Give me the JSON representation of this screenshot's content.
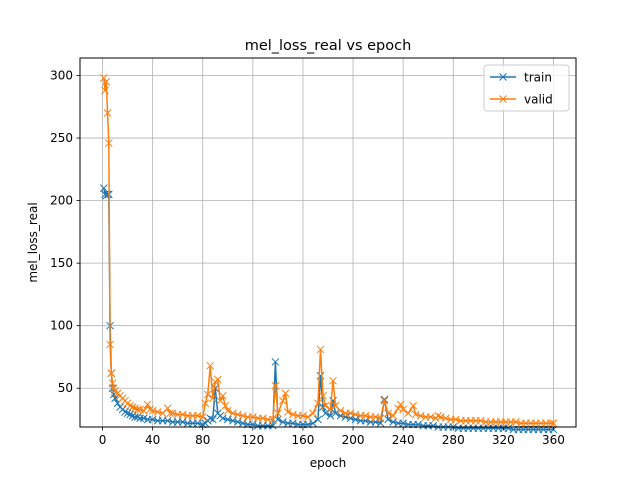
{
  "chart_data": {
    "type": "line",
    "title": "mel_loss_real vs epoch",
    "xlabel": "epoch",
    "ylabel": "mel_loss_real",
    "xlim": [
      -18,
      378
    ],
    "ylim": [
      19,
      314
    ],
    "xticks": [
      0,
      40,
      80,
      120,
      160,
      200,
      240,
      280,
      320,
      360
    ],
    "yticks": [
      50,
      100,
      150,
      200,
      250,
      300
    ],
    "grid": true,
    "legend": "top-right",
    "marker": "x",
    "series": [
      {
        "name": "train",
        "color": "#1f77b4",
        "points": [
          [
            1,
            210
          ],
          [
            2,
            205
          ],
          [
            3,
            204
          ],
          [
            4,
            205
          ],
          [
            5,
            205
          ],
          [
            6,
            100
          ],
          [
            7,
            62
          ],
          [
            8,
            50
          ],
          [
            9,
            45
          ],
          [
            10,
            42
          ],
          [
            12,
            38
          ],
          [
            14,
            35
          ],
          [
            16,
            33
          ],
          [
            18,
            31
          ],
          [
            20,
            30
          ],
          [
            22,
            29
          ],
          [
            24,
            28
          ],
          [
            26,
            27
          ],
          [
            28,
            27
          ],
          [
            30,
            26
          ],
          [
            33,
            26
          ],
          [
            36,
            25
          ],
          [
            40,
            25
          ],
          [
            44,
            24
          ],
          [
            48,
            24
          ],
          [
            52,
            24
          ],
          [
            56,
            23
          ],
          [
            60,
            23
          ],
          [
            64,
            23
          ],
          [
            68,
            22
          ],
          [
            72,
            22
          ],
          [
            76,
            22
          ],
          [
            80,
            21
          ],
          [
            82,
            22
          ],
          [
            84,
            24
          ],
          [
            86,
            26
          ],
          [
            88,
            25
          ],
          [
            90,
            50
          ],
          [
            92,
            30
          ],
          [
            94,
            28
          ],
          [
            96,
            26
          ],
          [
            100,
            25
          ],
          [
            104,
            24
          ],
          [
            108,
            23
          ],
          [
            112,
            22
          ],
          [
            116,
            21
          ],
          [
            120,
            21
          ],
          [
            124,
            20
          ],
          [
            128,
            20
          ],
          [
            132,
            20
          ],
          [
            136,
            20
          ],
          [
            138,
            71
          ],
          [
            140,
            25
          ],
          [
            144,
            23
          ],
          [
            148,
            22
          ],
          [
            152,
            22
          ],
          [
            156,
            21
          ],
          [
            160,
            21
          ],
          [
            164,
            21
          ],
          [
            168,
            22
          ],
          [
            172,
            25
          ],
          [
            174,
            60
          ],
          [
            176,
            35
          ],
          [
            178,
            30
          ],
          [
            182,
            28
          ],
          [
            184,
            40
          ],
          [
            186,
            30
          ],
          [
            190,
            28
          ],
          [
            194,
            27
          ],
          [
            198,
            26
          ],
          [
            202,
            25
          ],
          [
            206,
            24
          ],
          [
            210,
            24
          ],
          [
            214,
            23
          ],
          [
            218,
            23
          ],
          [
            222,
            22
          ],
          [
            225,
            41
          ],
          [
            228,
            25
          ],
          [
            232,
            23
          ],
          [
            236,
            22
          ],
          [
            240,
            22
          ],
          [
            244,
            21
          ],
          [
            248,
            21
          ],
          [
            252,
            21
          ],
          [
            256,
            20
          ],
          [
            260,
            20
          ],
          [
            264,
            20
          ],
          [
            268,
            19
          ],
          [
            272,
            19
          ],
          [
            276,
            19
          ],
          [
            280,
            19
          ],
          [
            284,
            18
          ],
          [
            288,
            18
          ],
          [
            292,
            18
          ],
          [
            296,
            18
          ],
          [
            300,
            18
          ],
          [
            304,
            18
          ],
          [
            308,
            18
          ],
          [
            312,
            18
          ],
          [
            316,
            18
          ],
          [
            320,
            18
          ],
          [
            324,
            18
          ],
          [
            328,
            17
          ],
          [
            332,
            17
          ],
          [
            336,
            17
          ],
          [
            340,
            17
          ],
          [
            344,
            17
          ],
          [
            348,
            17
          ],
          [
            352,
            17
          ],
          [
            356,
            17
          ],
          [
            360,
            17
          ]
        ]
      },
      {
        "name": "valid",
        "color": "#ff7f0e",
        "points": [
          [
            1,
            298
          ],
          [
            2,
            288
          ],
          [
            3,
            295
          ],
          [
            4,
            270
          ],
          [
            5,
            246
          ],
          [
            6,
            85
          ],
          [
            7,
            62
          ],
          [
            8,
            54
          ],
          [
            9,
            50
          ],
          [
            10,
            48
          ],
          [
            12,
            46
          ],
          [
            14,
            44
          ],
          [
            16,
            42
          ],
          [
            18,
            40
          ],
          [
            20,
            38
          ],
          [
            22,
            36
          ],
          [
            24,
            35
          ],
          [
            26,
            34
          ],
          [
            28,
            33
          ],
          [
            30,
            33
          ],
          [
            33,
            32
          ],
          [
            36,
            37
          ],
          [
            38,
            33
          ],
          [
            40,
            32
          ],
          [
            44,
            31
          ],
          [
            48,
            30
          ],
          [
            52,
            34
          ],
          [
            54,
            30
          ],
          [
            56,
            30
          ],
          [
            60,
            29
          ],
          [
            64,
            29
          ],
          [
            68,
            28
          ],
          [
            72,
            28
          ],
          [
            76,
            28
          ],
          [
            80,
            27
          ],
          [
            82,
            38
          ],
          [
            84,
            45
          ],
          [
            86,
            68
          ],
          [
            88,
            42
          ],
          [
            90,
            55
          ],
          [
            92,
            57
          ],
          [
            94,
            40
          ],
          [
            96,
            44
          ],
          [
            98,
            36
          ],
          [
            100,
            32
          ],
          [
            104,
            30
          ],
          [
            108,
            29
          ],
          [
            112,
            28
          ],
          [
            116,
            27
          ],
          [
            120,
            27
          ],
          [
            124,
            26
          ],
          [
            128,
            26
          ],
          [
            132,
            25
          ],
          [
            136,
            25
          ],
          [
            138,
            52
          ],
          [
            140,
            30
          ],
          [
            144,
            40
          ],
          [
            146,
            46
          ],
          [
            148,
            31
          ],
          [
            152,
            29
          ],
          [
            156,
            28
          ],
          [
            160,
            28
          ],
          [
            164,
            27
          ],
          [
            168,
            30
          ],
          [
            172,
            38
          ],
          [
            174,
            81
          ],
          [
            176,
            44
          ],
          [
            178,
            36
          ],
          [
            182,
            33
          ],
          [
            184,
            56
          ],
          [
            186,
            36
          ],
          [
            190,
            32
          ],
          [
            194,
            30
          ],
          [
            198,
            30
          ],
          [
            202,
            29
          ],
          [
            206,
            28
          ],
          [
            210,
            28
          ],
          [
            214,
            27
          ],
          [
            218,
            27
          ],
          [
            222,
            26
          ],
          [
            225,
            40
          ],
          [
            228,
            30
          ],
          [
            232,
            28
          ],
          [
            236,
            34
          ],
          [
            238,
            37
          ],
          [
            240,
            33
          ],
          [
            244,
            30
          ],
          [
            248,
            36
          ],
          [
            250,
            29
          ],
          [
            254,
            28
          ],
          [
            258,
            27
          ],
          [
            262,
            27
          ],
          [
            266,
            26
          ],
          [
            268,
            28
          ],
          [
            270,
            27
          ],
          [
            274,
            26
          ],
          [
            278,
            25
          ],
          [
            282,
            25
          ],
          [
            286,
            24
          ],
          [
            290,
            24
          ],
          [
            294,
            24
          ],
          [
            298,
            24
          ],
          [
            302,
            24
          ],
          [
            306,
            23
          ],
          [
            310,
            23
          ],
          [
            314,
            23
          ],
          [
            318,
            23
          ],
          [
            322,
            23
          ],
          [
            326,
            23
          ],
          [
            330,
            23
          ],
          [
            334,
            22
          ],
          [
            338,
            22
          ],
          [
            342,
            22
          ],
          [
            346,
            22
          ],
          [
            350,
            22
          ],
          [
            354,
            22
          ],
          [
            358,
            22
          ],
          [
            360,
            22
          ]
        ]
      }
    ]
  }
}
